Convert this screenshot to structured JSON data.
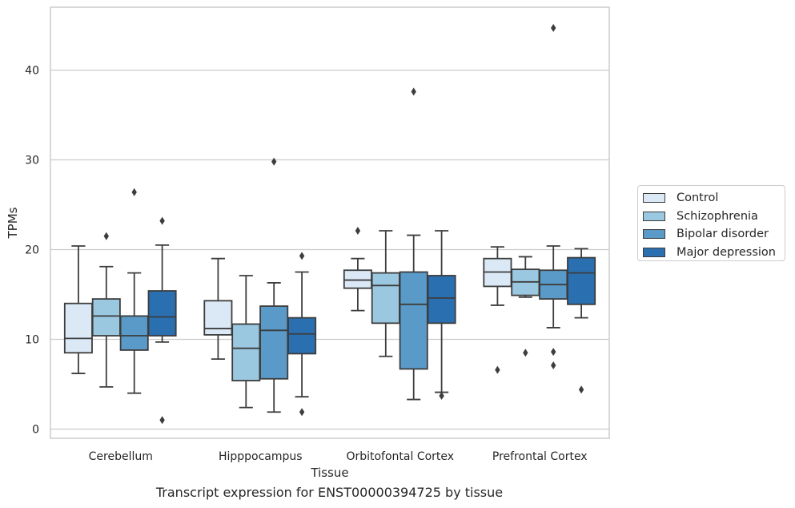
{
  "caption": "Transcript expression for ENST00000394725 by tissue",
  "chart_data": {
    "type": "box",
    "xlabel": "Tissue",
    "ylabel": "TPMs",
    "ylim": [
      -1,
      47
    ],
    "yticks": [
      0,
      10,
      20,
      30,
      40
    ],
    "grid": "horizontal",
    "legend_position": "right",
    "categories": [
      "Cerebellum",
      "Hipppocampus",
      "Orbitofontal Cortex",
      "Prefrontal Cortex"
    ],
    "series": [
      {
        "name": "Control",
        "color": "#dbe9f6",
        "boxes": [
          {
            "whislo": 6.2,
            "q1": 8.5,
            "med": 10.1,
            "q3": 14.0,
            "whishi": 20.4,
            "fliers": []
          },
          {
            "whislo": 7.8,
            "q1": 10.5,
            "med": 11.2,
            "q3": 14.3,
            "whishi": 19.0,
            "fliers": []
          },
          {
            "whislo": 13.2,
            "q1": 15.7,
            "med": 16.6,
            "q3": 17.7,
            "whishi": 19.0,
            "fliers": [
              22.1
            ]
          },
          {
            "whislo": 13.8,
            "q1": 15.9,
            "med": 17.5,
            "q3": 19.0,
            "whishi": 20.3,
            "fliers": [
              6.6
            ]
          }
        ]
      },
      {
        "name": "Schizophrenia",
        "color": "#9ac8e0",
        "boxes": [
          {
            "whislo": 4.7,
            "q1": 10.4,
            "med": 12.6,
            "q3": 14.5,
            "whishi": 18.1,
            "fliers": [
              21.5
            ]
          },
          {
            "whislo": 2.4,
            "q1": 5.4,
            "med": 9.0,
            "q3": 11.7,
            "whishi": 17.1,
            "fliers": []
          },
          {
            "whislo": 8.1,
            "q1": 11.8,
            "med": 16.0,
            "q3": 17.4,
            "whishi": 22.1,
            "fliers": []
          },
          {
            "whislo": 14.7,
            "q1": 14.9,
            "med": 16.4,
            "q3": 17.8,
            "whishi": 19.2,
            "fliers": [
              8.5
            ]
          }
        ]
      },
      {
        "name": "Bipolar disorder",
        "color": "#5a9ac8",
        "boxes": [
          {
            "whislo": 4.0,
            "q1": 8.8,
            "med": 10.4,
            "q3": 12.6,
            "whishi": 17.4,
            "fliers": [
              26.4
            ]
          },
          {
            "whislo": 1.9,
            "q1": 5.6,
            "med": 11.0,
            "q3": 13.7,
            "whishi": 16.3,
            "fliers": [
              29.8
            ]
          },
          {
            "whislo": 3.3,
            "q1": 6.7,
            "med": 13.9,
            "q3": 17.5,
            "whishi": 21.6,
            "fliers": [
              37.6
            ]
          },
          {
            "whislo": 11.3,
            "q1": 14.5,
            "med": 16.1,
            "q3": 17.7,
            "whishi": 20.4,
            "fliers": [
              8.6,
              7.1,
              44.7
            ]
          }
        ]
      },
      {
        "name": "Major depression",
        "color": "#2a6fb0",
        "boxes": [
          {
            "whislo": 9.7,
            "q1": 10.4,
            "med": 12.5,
            "q3": 15.4,
            "whishi": 20.5,
            "fliers": [
              23.2,
              1.0
            ]
          },
          {
            "whislo": 3.6,
            "q1": 8.4,
            "med": 10.6,
            "q3": 12.4,
            "whishi": 17.5,
            "fliers": [
              19.3,
              1.9
            ]
          },
          {
            "whislo": 4.1,
            "q1": 11.8,
            "med": 14.6,
            "q3": 17.1,
            "whishi": 22.1,
            "fliers": [
              3.7
            ]
          },
          {
            "whislo": 12.4,
            "q1": 13.9,
            "med": 17.4,
            "q3": 19.1,
            "whishi": 20.1,
            "fliers": [
              4.4
            ]
          }
        ]
      }
    ]
  }
}
